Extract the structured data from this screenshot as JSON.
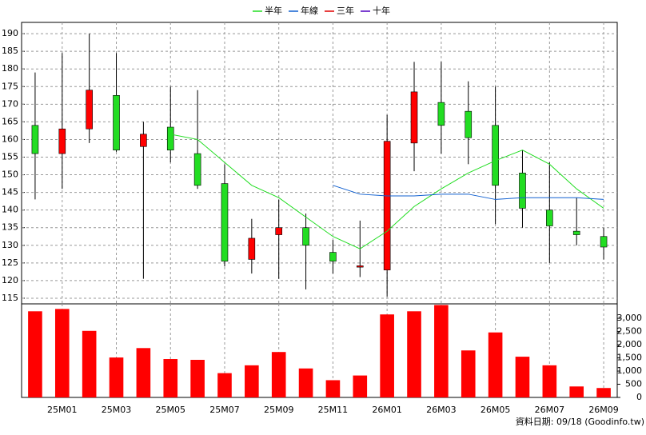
{
  "chart_data": {
    "type": "candlestick",
    "categories": [
      null,
      "25M01",
      null,
      "25M03",
      null,
      "25M05",
      null,
      "25M07",
      null,
      "25M09",
      null,
      "25M11",
      null,
      "26M01",
      null,
      "26M03",
      null,
      "26M05",
      null,
      "26M07",
      null,
      "26M09"
    ],
    "open": [
      164,
      156,
      163,
      172.5,
      158,
      163.5,
      156,
      147.5,
      126,
      133,
      135,
      128,
      123.8,
      123,
      159,
      170.5,
      168,
      164,
      150.5,
      140,
      134,
      132.5
    ],
    "high": [
      179,
      184.5,
      190,
      184.5,
      165,
      175,
      174,
      153,
      137.5,
      143,
      139,
      131.5,
      137,
      167,
      182,
      182,
      176.5,
      175,
      157,
      153.5,
      143.5,
      135
    ],
    "low": [
      143,
      146,
      159,
      156.5,
      120.5,
      153.5,
      146,
      124,
      122,
      120.5,
      117.5,
      122,
      121,
      115.5,
      151,
      156,
      153,
      136,
      135,
      125,
      130,
      126
    ],
    "close": [
      156,
      163,
      174,
      157,
      161.5,
      157,
      147,
      125.5,
      132,
      135,
      130,
      125.5,
      124.2,
      159.5,
      173.5,
      164,
      160.5,
      147,
      140.5,
      135.5,
      133,
      129.5
    ],
    "up_color": "#ff0000",
    "down_color": "#22dd22",
    "ylim": [
      113.4,
      193.2
    ],
    "yticks": [
      115,
      120,
      125,
      130,
      135,
      140,
      145,
      150,
      155,
      160,
      165,
      170,
      175,
      180,
      185,
      190
    ],
    "grid": true,
    "series": [
      {
        "name": "半年",
        "color": "#22dd22",
        "values": [
          null,
          null,
          null,
          null,
          null,
          161.5,
          160,
          153.5,
          147,
          143.5,
          138,
          132.5,
          129,
          134,
          141,
          146,
          150.5,
          154,
          157,
          153,
          146,
          140.5
        ]
      },
      {
        "name": "年線",
        "color": "#1060d0",
        "values": [
          null,
          null,
          null,
          null,
          null,
          null,
          null,
          null,
          null,
          null,
          null,
          147,
          144.5,
          144,
          144,
          144.5,
          144.5,
          143,
          143.5,
          143.5,
          143.5,
          143
        ]
      },
      {
        "name": "三年",
        "color": "#e00000",
        "values": [
          null,
          null,
          null,
          null,
          null,
          null,
          null,
          null,
          null,
          null,
          null,
          null,
          null,
          null,
          null,
          null,
          null,
          null,
          null,
          null,
          null,
          null
        ]
      },
      {
        "name": "十年",
        "color": "#5000c0",
        "values": [
          null,
          null,
          null,
          null,
          null,
          null,
          null,
          null,
          null,
          null,
          null,
          null,
          null,
          null,
          null,
          null,
          null,
          null,
          null,
          null,
          null,
          null
        ]
      }
    ],
    "volume": {
      "type": "bar",
      "color": "#ff0000",
      "values": [
        3268,
        3357,
        2525,
        1515,
        1872,
        1456,
        1426,
        921,
        1218,
        1723,
        1099,
        654,
        832,
        3149,
        3268,
        3506,
        1783,
        2466,
        1545,
        1218,
        416,
        357
      ],
      "ylim": [
        0,
        3550
      ],
      "yticks": [
        0,
        500,
        {
          "value": 1000,
          "label": "1,000"
        },
        {
          "value": 1500,
          "label": "1,500"
        },
        {
          "value": 2000,
          "label": "2,000"
        },
        {
          "value": 2500,
          "label": "2,500"
        },
        {
          "value": 3000,
          "label": "3,000"
        }
      ]
    },
    "footer": "資料日期: 09/18 (Goodinfo.tw)"
  }
}
